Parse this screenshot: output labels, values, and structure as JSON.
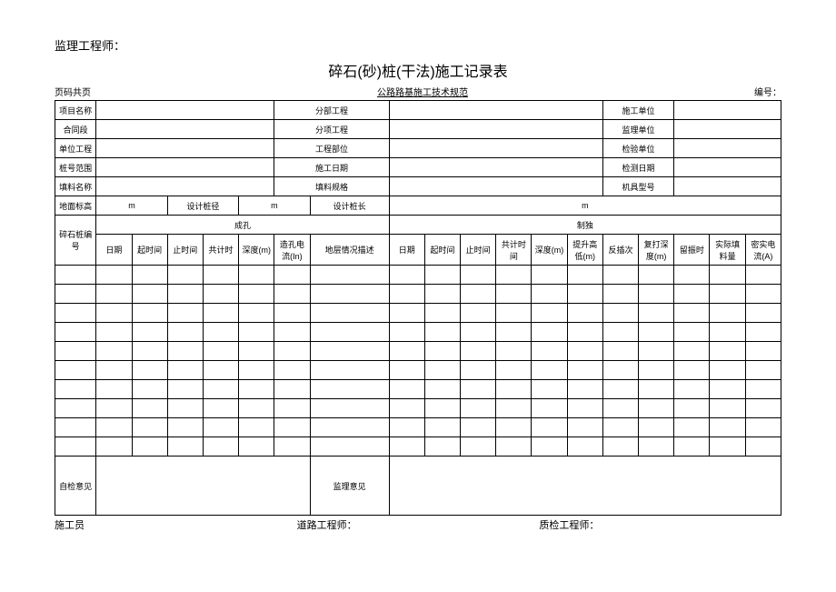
{
  "supervisor_label": "监理工程师：",
  "title": "碎石(砂)桩(干法)施工记录表",
  "page_label": "页码共页",
  "spec_ref": "公路路基施工技术规范",
  "serial_label": "编号：",
  "info_rows": [
    {
      "l1": "项目名称",
      "v1": "",
      "l2": "分部工程",
      "v2": "",
      "l3": "施工单位",
      "v3": ""
    },
    {
      "l1": "合同段",
      "v1": "",
      "l2": "分项工程",
      "v2": "",
      "l3": "监理单位",
      "v3": ""
    },
    {
      "l1": "单位工程",
      "v1": "",
      "l2": "工程部位",
      "v2": "",
      "l3": "检验单位",
      "v3": ""
    },
    {
      "l1": "桩号范围",
      "v1": "",
      "l2": "施工日期",
      "v2": "",
      "l3": "检测日期",
      "v3": ""
    },
    {
      "l1": "填料名称",
      "v1": "",
      "l2": "填料规格",
      "v2": "",
      "l3": "机具型号",
      "v3": ""
    }
  ],
  "dim_row": {
    "elev_label": "地面标高",
    "elev_unit": "m",
    "dia_label": "设计桩径",
    "dia_unit": "m",
    "len_label": "设计桩长",
    "len_unit": "m"
  },
  "group_pile_id": "碎石桩编号",
  "group_hole": "成孔",
  "group_tamp": "制独",
  "hole_cols": [
    "日期",
    "起时间",
    "止时间",
    "共计时",
    "深度(m)",
    "造孔电流(In)",
    "地层情况描述"
  ],
  "tamp_cols": [
    "日期",
    "起时间",
    "止时间",
    "共计时间",
    "深度(m)",
    "提升高低(m)",
    "反插次",
    "复打深度(m)",
    "留振时",
    "实际填料量",
    "密实电流(A)"
  ],
  "opinion": {
    "self": "自检意见",
    "super": "监理意见"
  },
  "sign": {
    "worker": "施工员",
    "road": "道路工程师：",
    "qc": "质检工程师："
  },
  "blank_rows": 10
}
